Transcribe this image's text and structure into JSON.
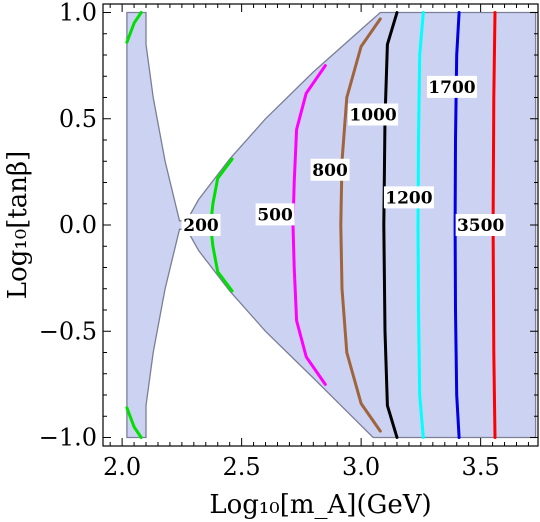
{
  "chart_data": {
    "type": "contour",
    "xlabel": "Log₁₀[m_A](GeV)",
    "ylabel": "Log₁₀[tanβ]",
    "xlim": [
      1.92,
      3.74
    ],
    "ylim": [
      -1.04,
      1.04
    ],
    "xticks": [
      2.0,
      2.5,
      3.0,
      3.5
    ],
    "xtick_labels": [
      "2.0",
      "2.5",
      "3.0",
      "3.5"
    ],
    "yticks": [
      -1.0,
      -0.5,
      0.0,
      0.5,
      1.0
    ],
    "ytick_labels": [
      "−1.0",
      "−0.5",
      "0.0",
      "0.5",
      "1.0"
    ],
    "grid": false,
    "region": {
      "fill": "#ccd2f2",
      "outline": "#7a7f95",
      "boundary": [
        [
          2.02,
          1.0
        ],
        [
          2.1,
          1.0
        ],
        [
          2.1,
          0.85
        ],
        [
          2.13,
          0.6
        ],
        [
          2.18,
          0.3
        ],
        [
          2.24,
          0.02
        ],
        [
          2.27,
          0.02
        ],
        [
          2.32,
          0.12
        ],
        [
          2.45,
          0.31
        ],
        [
          2.6,
          0.5
        ],
        [
          2.8,
          0.72
        ],
        [
          3.0,
          0.92
        ],
        [
          3.08,
          1.0
        ],
        [
          3.73,
          1.0
        ],
        [
          3.73,
          -1.0
        ],
        [
          3.05,
          -1.0
        ],
        [
          2.8,
          -0.72
        ],
        [
          2.6,
          -0.5
        ],
        [
          2.45,
          -0.31
        ],
        [
          2.32,
          -0.12
        ],
        [
          2.27,
          -0.02
        ],
        [
          2.24,
          -0.02
        ],
        [
          2.18,
          -0.3
        ],
        [
          2.13,
          -0.6
        ],
        [
          2.1,
          -0.85
        ],
        [
          2.1,
          -1.0
        ],
        [
          2.02,
          -1.0
        ]
      ]
    },
    "series": [
      {
        "name": "200",
        "color": "#00e000",
        "segments": [
          [
            [
              2.02,
              0.86
            ],
            [
              2.05,
              0.95
            ],
            [
              2.08,
              1.0
            ]
          ],
          [
            [
              2.02,
              -0.86
            ],
            [
              2.05,
              -0.95
            ],
            [
              2.08,
              -1.0
            ]
          ],
          [
            [
              2.46,
              0.31
            ],
            [
              2.4,
              0.22
            ],
            [
              2.38,
              0.1
            ],
            [
              2.37,
              0.0
            ],
            [
              2.38,
              -0.1
            ],
            [
              2.4,
              -0.22
            ],
            [
              2.46,
              -0.31
            ]
          ]
        ]
      },
      {
        "name": "500",
        "color": "#ff00ff",
        "segments": [
          [
            [
              2.85,
              0.75
            ],
            [
              2.77,
              0.62
            ],
            [
              2.73,
              0.45
            ],
            [
              2.72,
              0.2
            ],
            [
              2.715,
              0.0
            ],
            [
              2.72,
              -0.2
            ],
            [
              2.73,
              -0.45
            ],
            [
              2.77,
              -0.62
            ],
            [
              2.85,
              -0.75
            ]
          ]
        ]
      },
      {
        "name": "800",
        "color": "#a0643c",
        "segments": [
          [
            [
              3.08,
              0.97
            ],
            [
              3.0,
              0.84
            ],
            [
              2.94,
              0.6
            ],
            [
              2.92,
              0.3
            ],
            [
              2.915,
              0.0
            ],
            [
              2.92,
              -0.3
            ],
            [
              2.94,
              -0.6
            ],
            [
              3.0,
              -0.84
            ],
            [
              3.08,
              -0.97
            ]
          ]
        ]
      },
      {
        "name": "1000",
        "color": "#000000",
        "segments": [
          [
            [
              3.15,
              1.0
            ],
            [
              3.11,
              0.85
            ],
            [
              3.1,
              0.5
            ],
            [
              3.095,
              0.0
            ],
            [
              3.1,
              -0.5
            ],
            [
              3.11,
              -0.85
            ],
            [
              3.15,
              -1.0
            ]
          ]
        ]
      },
      {
        "name": "1200",
        "color": "#00ffff",
        "segments": [
          [
            [
              3.26,
              1.0
            ],
            [
              3.245,
              0.8
            ],
            [
              3.24,
              0.4
            ],
            [
              3.238,
              0.0
            ],
            [
              3.24,
              -0.4
            ],
            [
              3.245,
              -0.8
            ],
            [
              3.26,
              -1.0
            ]
          ]
        ]
      },
      {
        "name": "1700",
        "color": "#0000e0",
        "segments": [
          [
            [
              3.41,
              1.0
            ],
            [
              3.4,
              0.8
            ],
            [
              3.395,
              0.4
            ],
            [
              3.393,
              0.0
            ],
            [
              3.395,
              -0.4
            ],
            [
              3.4,
              -0.8
            ],
            [
              3.41,
              -1.0
            ]
          ]
        ]
      },
      {
        "name": "3500",
        "color": "#ff0000",
        "segments": [
          [
            [
              3.56,
              1.0
            ],
            [
              3.555,
              0.6
            ],
            [
              3.552,
              0.0
            ],
            [
              3.555,
              -0.6
            ],
            [
              3.56,
              -1.0
            ]
          ]
        ]
      }
    ],
    "annotations": [
      {
        "text": "200",
        "x": 2.33,
        "y": 0.0
      },
      {
        "text": "500",
        "x": 2.64,
        "y": 0.05
      },
      {
        "text": "800",
        "x": 2.87,
        "y": 0.26
      },
      {
        "text": "1000",
        "x": 3.05,
        "y": 0.52
      },
      {
        "text": "1200",
        "x": 3.2,
        "y": 0.13
      },
      {
        "text": "1700",
        "x": 3.38,
        "y": 0.65
      },
      {
        "text": "3500",
        "x": 3.5,
        "y": 0.0
      }
    ]
  }
}
